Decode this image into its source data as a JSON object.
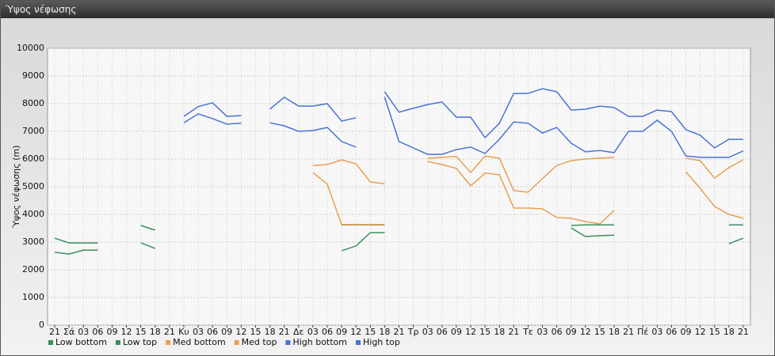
{
  "window_title": "Ύψος νέφωσης",
  "chart_data": {
    "type": "line",
    "y_label": "Ύψος νέφωσης (m)",
    "categories": [
      "21",
      "Σά",
      "03",
      "06",
      "09",
      "12",
      "15",
      "18",
      "21",
      "Κυ",
      "03",
      "06",
      "09",
      "12",
      "15",
      "18",
      "21",
      "Δε",
      "03",
      "06",
      "09",
      "12",
      "15",
      "18",
      "21",
      "Τρ",
      "03",
      "06",
      "09",
      "12",
      "15",
      "18",
      "21",
      "Τε",
      "03",
      "06",
      "09",
      "12",
      "15",
      "18",
      "21",
      "Πέ",
      "03",
      "06",
      "09",
      "12",
      "15",
      "18",
      "21"
    ],
    "ylim": [
      0,
      10000
    ],
    "yticks": [
      0,
      1000,
      2000,
      3000,
      4000,
      5000,
      6000,
      7000,
      8000,
      9000,
      10000
    ],
    "grid": true,
    "series": [
      {
        "name": "Low bottom",
        "color": "#3a8f5c",
        "values": [
          2630,
          2570,
          2710,
          2710,
          null,
          null,
          2970,
          2770,
          null,
          null,
          null,
          null,
          null,
          null,
          null,
          null,
          null,
          null,
          null,
          null,
          2690,
          2860,
          3340,
          3340,
          null,
          null,
          null,
          null,
          null,
          null,
          null,
          null,
          null,
          null,
          null,
          null,
          3510,
          3200,
          3230,
          3250,
          null,
          null,
          null,
          null,
          null,
          null,
          null,
          2940,
          3140
        ]
      },
      {
        "name": "Low top",
        "color": "#3a8f5c",
        "values": [
          3140,
          2970,
          2970,
          2970,
          null,
          null,
          3600,
          3430,
          null,
          null,
          null,
          null,
          null,
          null,
          null,
          null,
          null,
          null,
          null,
          null,
          3620,
          3620,
          3620,
          3620,
          null,
          null,
          null,
          null,
          null,
          null,
          null,
          null,
          null,
          null,
          null,
          null,
          3600,
          3620,
          3620,
          3620,
          null,
          null,
          null,
          null,
          null,
          null,
          null,
          3620,
          3620
        ]
      },
      {
        "name": "Med bottom",
        "color": "#e8a050",
        "values": [
          null,
          null,
          null,
          null,
          null,
          null,
          null,
          null,
          null,
          null,
          null,
          null,
          null,
          null,
          null,
          null,
          null,
          null,
          5510,
          5090,
          3630,
          3630,
          3630,
          3630,
          null,
          null,
          5910,
          5800,
          5660,
          5030,
          5490,
          5430,
          4230,
          4230,
          4200,
          3890,
          3860,
          3740,
          3660,
          4140,
          null,
          null,
          null,
          null,
          5540,
          4940,
          4290,
          4000,
          3860
        ]
      },
      {
        "name": "Med top",
        "color": "#e8a050",
        "values": [
          null,
          null,
          null,
          null,
          null,
          null,
          null,
          null,
          null,
          null,
          null,
          null,
          null,
          null,
          null,
          null,
          null,
          null,
          5770,
          5800,
          5970,
          5830,
          5170,
          5110,
          null,
          null,
          6030,
          6060,
          6090,
          5510,
          6110,
          6030,
          4860,
          4800,
          5290,
          5770,
          5940,
          6000,
          6030,
          6060,
          null,
          null,
          null,
          null,
          6030,
          5940,
          5310,
          5690,
          5970
        ]
      },
      {
        "name": "High bottom",
        "color": "#4a72d4",
        "values": [
          null,
          null,
          null,
          null,
          null,
          null,
          null,
          null,
          null,
          7310,
          7630,
          7460,
          7260,
          7290,
          null,
          7310,
          7200,
          7000,
          7030,
          7140,
          6630,
          6430,
          null,
          8230,
          6630,
          6400,
          6170,
          6170,
          6340,
          6430,
          6200,
          6710,
          7340,
          7290,
          6940,
          7140,
          6570,
          6260,
          6310,
          6230,
          7000,
          7000,
          7400,
          7000,
          6110,
          6060,
          6060,
          6060,
          6290
        ]
      },
      {
        "name": "High top",
        "color": "#4a72d4",
        "values": [
          null,
          null,
          null,
          null,
          null,
          null,
          null,
          null,
          null,
          7540,
          7890,
          8030,
          7540,
          7570,
          null,
          7800,
          8230,
          7910,
          7910,
          8000,
          7370,
          7490,
          null,
          8430,
          7690,
          7830,
          7970,
          8060,
          7510,
          7510,
          6770,
          7290,
          8370,
          8370,
          8540,
          8430,
          7770,
          7800,
          7910,
          7860,
          7540,
          7540,
          7770,
          7710,
          7060,
          6860,
          6400,
          6710,
          6710
        ]
      }
    ]
  }
}
